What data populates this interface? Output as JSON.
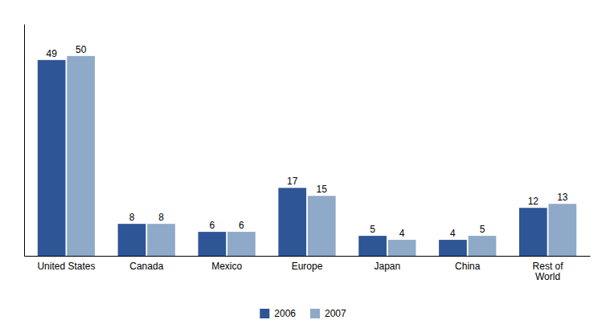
{
  "chart_data": {
    "type": "bar",
    "categories": [
      "United States",
      "Canada",
      "Mexico",
      "Europe",
      "Japan",
      "China",
      "Rest of\nWorld"
    ],
    "series": [
      {
        "name": "2006",
        "color": "#2E5596",
        "values": [
          49,
          8,
          6,
          17,
          5,
          4,
          12
        ]
      },
      {
        "name": "2007",
        "color": "#8FA9C8",
        "values": [
          50,
          8,
          6,
          15,
          4,
          5,
          13
        ]
      }
    ],
    "ylim": [
      0,
      58
    ],
    "tick_labels": "x",
    "data_labels": true,
    "legend": "bottom",
    "grid": false
  }
}
